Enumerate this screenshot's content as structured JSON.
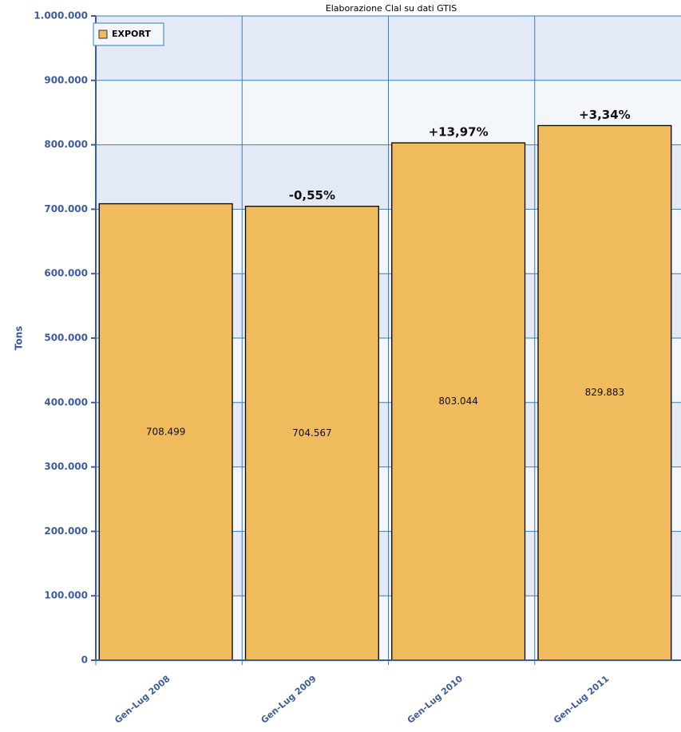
{
  "chart_data": {
    "type": "bar",
    "title": "Elaborazione Clal su dati GTIS",
    "y_label": "Tons",
    "categories": [
      "Gen-Lug 2008",
      "Gen-Lug 2009",
      "Gen-Lug 2010",
      "Gen-Lug 2011"
    ],
    "series": [
      {
        "name": "EXPORT",
        "color": "#f0bb5c",
        "values": [
          708499,
          704567,
          803044,
          829883
        ],
        "value_labels": [
          "708.499",
          "704.567",
          "803.044",
          "829.883"
        ]
      }
    ],
    "change_labels": [
      null,
      "-0,55%",
      "+13,97%",
      "+3,34%"
    ],
    "ylim": [
      0,
      1000000
    ],
    "yticks": [
      0,
      {
        "value": 100000,
        "label": "100.000"
      },
      {
        "value": 200000,
        "label": "200.000"
      },
      {
        "value": 300000,
        "label": "300.000"
      },
      {
        "value": 400000,
        "label": "400.000"
      },
      {
        "value": 500000,
        "label": "500.000"
      },
      {
        "value": 600000,
        "label": "600.000"
      },
      {
        "value": 700000,
        "label": "700.000"
      },
      {
        "value": 800000,
        "label": "800.000"
      },
      {
        "value": 900000,
        "label": "900.000"
      },
      {
        "value": 1000000,
        "label": "1.000.000"
      }
    ],
    "grid": true,
    "legend": "top-left"
  }
}
